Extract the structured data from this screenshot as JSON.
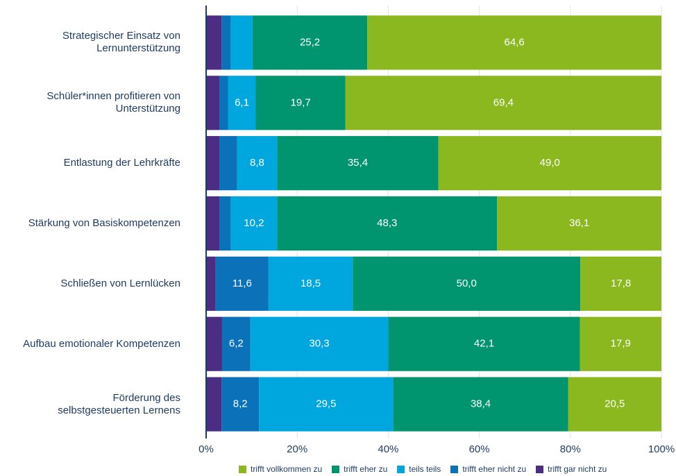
{
  "chart_data": {
    "type": "stacked_barh",
    "categories": [
      "Strategischer Einsatz von\nLernunterstützung",
      "Schüler*innen profitieren von\nUnterstützung",
      "Entlastung der Lehrkräfte",
      "Stärkung von Basiskompetenzen",
      "Schließen von Lernlücken",
      "Aufbau emotionaler Kompetenzen",
      "Förderung des\nselbstgesteuerten Lernens"
    ],
    "series": [
      {
        "name": "trifft gar nicht zu",
        "color": "#4b2e83",
        "values": [
          3.4,
          2.9,
          2.9,
          2.9,
          2.1,
          3.5,
          3.4
        ],
        "value_labels": [
          null,
          null,
          null,
          null,
          null,
          null,
          null
        ]
      },
      {
        "name": "trifft eher nicht zu",
        "color": "#0b72b9",
        "values": [
          2.0,
          1.9,
          3.9,
          2.5,
          11.6,
          6.2,
          8.2
        ],
        "value_labels": [
          null,
          null,
          null,
          null,
          "11,6",
          "6,2",
          "8,2"
        ]
      },
      {
        "name": "teils teils",
        "color": "#00a7df",
        "values": [
          4.8,
          6.1,
          8.8,
          10.2,
          18.5,
          30.3,
          29.5
        ],
        "value_labels": [
          null,
          "6,1",
          "8,8",
          "10,2",
          "18,5",
          "30,3",
          "29,5"
        ]
      },
      {
        "name": "trifft eher zu",
        "color": "#00956f",
        "values": [
          25.2,
          19.7,
          35.4,
          48.3,
          50.0,
          42.1,
          38.4
        ],
        "value_labels": [
          "25,2",
          "19,7",
          "35,4",
          "48,3",
          "50,0",
          "42,1",
          "38,4"
        ]
      },
      {
        "name": "trifft vollkommen zu",
        "color": "#8bb81f",
        "values": [
          64.6,
          69.4,
          49.0,
          36.1,
          17.8,
          17.9,
          20.5
        ],
        "value_labels": [
          "64,6",
          "69,4",
          "49,0",
          "36,1",
          "17,8",
          "17,9",
          "20,5"
        ]
      }
    ],
    "xlim": [
      0,
      100
    ],
    "xticks": [
      {
        "value": 0,
        "label": "0%"
      },
      {
        "value": 20,
        "label": "20%"
      },
      {
        "value": 40,
        "label": "40%"
      },
      {
        "value": 60,
        "label": "60%"
      },
      {
        "value": 80,
        "label": "80%"
      },
      {
        "value": 100,
        "label": "100%"
      }
    ],
    "grid": true
  }
}
